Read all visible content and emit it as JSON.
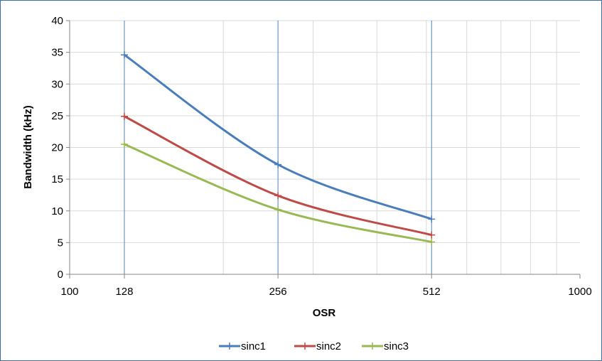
{
  "chart_data": {
    "type": "line",
    "xlabel": "OSR",
    "ylabel": "Bandwidth (kHz)",
    "x_scale": "log",
    "xlim": [
      100,
      1000
    ],
    "ylim": [
      0,
      40
    ],
    "x_ticks": [
      100,
      128,
      256,
      512,
      1000
    ],
    "y_ticks": [
      0,
      5,
      10,
      15,
      20,
      25,
      30,
      35,
      40
    ],
    "x_tick_labels": [
      "100",
      "128",
      "256",
      "512",
      "1000"
    ],
    "y_tick_labels": [
      "0",
      "5",
      "10",
      "15",
      "20",
      "25",
      "30",
      "35",
      "40"
    ],
    "grid": true,
    "legend_position": "bottom",
    "x": [
      128,
      256,
      512
    ],
    "series": [
      {
        "name": "sinc1",
        "color": "#4a7ebb",
        "values": [
          34.6,
          17.3,
          8.7
        ]
      },
      {
        "name": "sinc2",
        "color": "#be4b48",
        "values": [
          24.9,
          12.4,
          6.2
        ]
      },
      {
        "name": "sinc3",
        "color": "#98b954",
        "values": [
          20.5,
          10.2,
          5.1
        ]
      }
    ],
    "axis_color": "#868686",
    "grid_color": "#d9d9d9",
    "highlight_line_color": "#4f81bd"
  }
}
